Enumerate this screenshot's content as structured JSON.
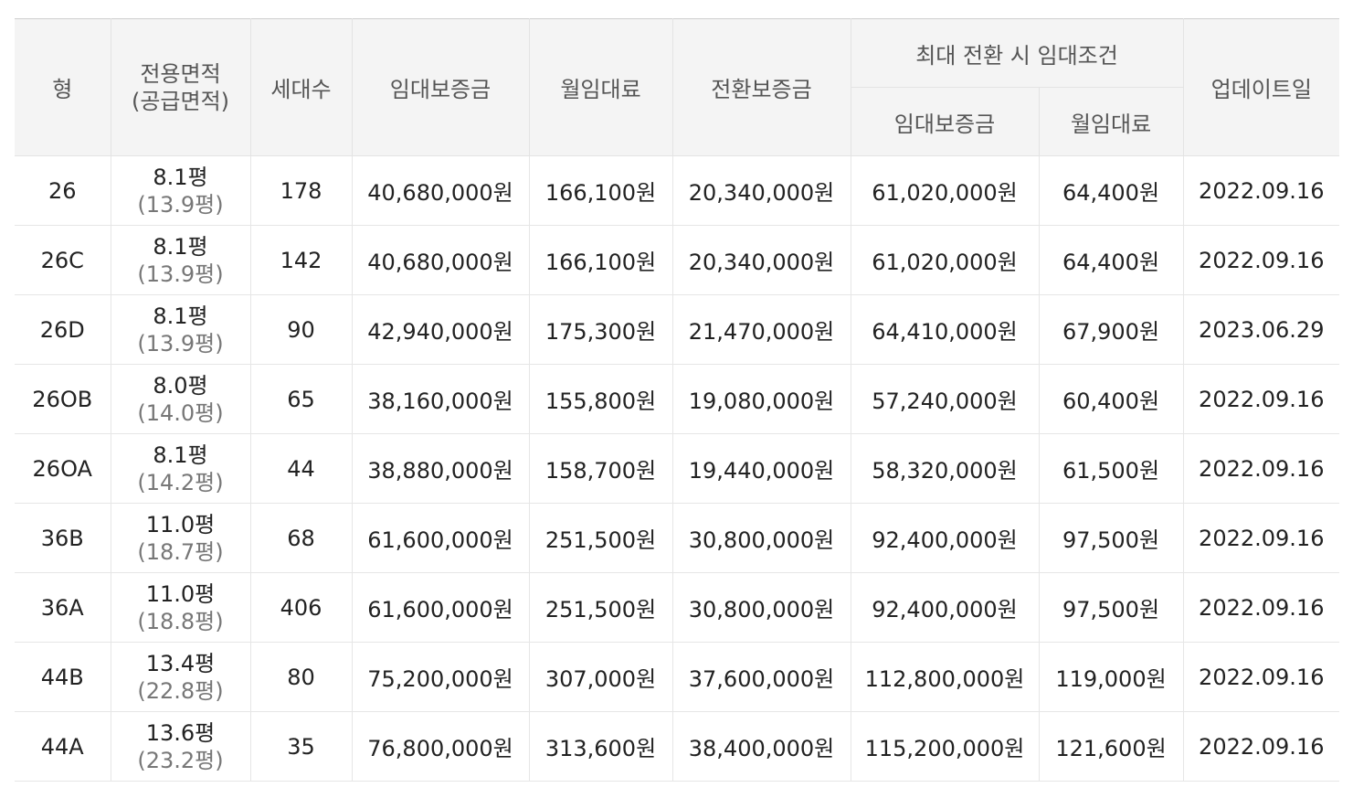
{
  "table": {
    "headers": {
      "type": "형",
      "area_line1": "전용면적",
      "area_line2": "(공급면적)",
      "households": "세대수",
      "deposit": "임대보증금",
      "monthly_rent": "월임대료",
      "conversion_deposit": "전환보증금",
      "max_conversion_group": "최대 전환 시 임대조건",
      "max_deposit": "임대보증금",
      "max_monthly_rent": "월임대료",
      "updated": "업데이트일"
    },
    "rows": [
      {
        "type": "26",
        "area": "8.1평",
        "supply_area": "(13.9평)",
        "households": "178",
        "deposit": "40,680,000원",
        "monthly_rent": "166,100원",
        "conversion_deposit": "20,340,000원",
        "max_deposit": "61,020,000원",
        "max_monthly_rent": "64,400원",
        "updated": "2022.09.16"
      },
      {
        "type": "26C",
        "area": "8.1평",
        "supply_area": "(13.9평)",
        "households": "142",
        "deposit": "40,680,000원",
        "monthly_rent": "166,100원",
        "conversion_deposit": "20,340,000원",
        "max_deposit": "61,020,000원",
        "max_monthly_rent": "64,400원",
        "updated": "2022.09.16"
      },
      {
        "type": "26D",
        "area": "8.1평",
        "supply_area": "(13.9평)",
        "households": "90",
        "deposit": "42,940,000원",
        "monthly_rent": "175,300원",
        "conversion_deposit": "21,470,000원",
        "max_deposit": "64,410,000원",
        "max_monthly_rent": "67,900원",
        "updated": "2023.06.29"
      },
      {
        "type": "26OB",
        "area": "8.0평",
        "supply_area": "(14.0평)",
        "households": "65",
        "deposit": "38,160,000원",
        "monthly_rent": "155,800원",
        "conversion_deposit": "19,080,000원",
        "max_deposit": "57,240,000원",
        "max_monthly_rent": "60,400원",
        "updated": "2022.09.16"
      },
      {
        "type": "26OA",
        "area": "8.1평",
        "supply_area": "(14.2평)",
        "households": "44",
        "deposit": "38,880,000원",
        "monthly_rent": "158,700원",
        "conversion_deposit": "19,440,000원",
        "max_deposit": "58,320,000원",
        "max_monthly_rent": "61,500원",
        "updated": "2022.09.16"
      },
      {
        "type": "36B",
        "area": "11.0평",
        "supply_area": "(18.7평)",
        "households": "68",
        "deposit": "61,600,000원",
        "monthly_rent": "251,500원",
        "conversion_deposit": "30,800,000원",
        "max_deposit": "92,400,000원",
        "max_monthly_rent": "97,500원",
        "updated": "2022.09.16"
      },
      {
        "type": "36A",
        "area": "11.0평",
        "supply_area": "(18.8평)",
        "households": "406",
        "deposit": "61,600,000원",
        "monthly_rent": "251,500원",
        "conversion_deposit": "30,800,000원",
        "max_deposit": "92,400,000원",
        "max_monthly_rent": "97,500원",
        "updated": "2022.09.16"
      },
      {
        "type": "44B",
        "area": "13.4평",
        "supply_area": "(22.8평)",
        "households": "80",
        "deposit": "75,200,000원",
        "monthly_rent": "307,000원",
        "conversion_deposit": "37,600,000원",
        "max_deposit": "112,800,000원",
        "max_monthly_rent": "119,000원",
        "updated": "2022.09.16"
      },
      {
        "type": "44A",
        "area": "13.6평",
        "supply_area": "(23.2평)",
        "households": "35",
        "deposit": "76,800,000원",
        "monthly_rent": "313,600원",
        "conversion_deposit": "38,400,000원",
        "max_deposit": "115,200,000원",
        "max_monthly_rent": "121,600원",
        "updated": "2022.09.16"
      }
    ]
  }
}
